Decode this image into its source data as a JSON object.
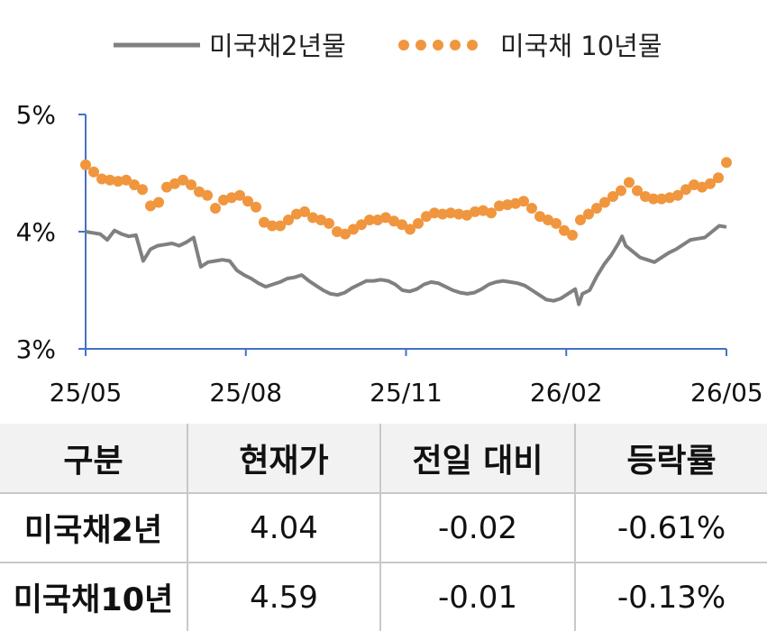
{
  "chart_data": {
    "type": "line",
    "x_ticks": [
      "25/05",
      "25/08",
      "25/11",
      "26/02",
      "26/05"
    ],
    "y_ticks": [
      "3%",
      "4%",
      "5%"
    ],
    "ylim": [
      3,
      5
    ],
    "x_range": [
      "25/05",
      "26/05"
    ],
    "grid": false,
    "legend_position": "top",
    "series": [
      {
        "name": "미국채2년물",
        "style": "line",
        "color": "#808080",
        "points": [
          [
            0.0,
            4.0
          ],
          [
            0.01,
            3.99
          ],
          [
            0.02,
            3.98
          ],
          [
            0.03,
            3.93
          ],
          [
            0.04,
            4.01
          ],
          [
            0.05,
            3.98
          ],
          [
            0.06,
            3.96
          ],
          [
            0.07,
            3.97
          ],
          [
            0.08,
            3.75
          ],
          [
            0.09,
            3.85
          ],
          [
            0.1,
            3.88
          ],
          [
            0.11,
            3.89
          ],
          [
            0.12,
            3.9
          ],
          [
            0.13,
            3.88
          ],
          [
            0.14,
            3.91
          ],
          [
            0.15,
            3.95
          ],
          [
            0.16,
            3.7
          ],
          [
            0.17,
            3.74
          ],
          [
            0.18,
            3.75
          ],
          [
            0.19,
            3.76
          ],
          [
            0.2,
            3.75
          ],
          [
            0.21,
            3.67
          ],
          [
            0.22,
            3.63
          ],
          [
            0.23,
            3.6
          ],
          [
            0.24,
            3.56
          ],
          [
            0.25,
            3.53
          ],
          [
            0.26,
            3.55
          ],
          [
            0.27,
            3.57
          ],
          [
            0.28,
            3.6
          ],
          [
            0.29,
            3.61
          ],
          [
            0.3,
            3.63
          ],
          [
            0.31,
            3.58
          ],
          [
            0.32,
            3.54
          ],
          [
            0.33,
            3.5
          ],
          [
            0.34,
            3.47
          ],
          [
            0.35,
            3.46
          ],
          [
            0.36,
            3.48
          ],
          [
            0.37,
            3.52
          ],
          [
            0.38,
            3.55
          ],
          [
            0.39,
            3.58
          ],
          [
            0.4,
            3.58
          ],
          [
            0.41,
            3.59
          ],
          [
            0.42,
            3.58
          ],
          [
            0.43,
            3.55
          ],
          [
            0.44,
            3.5
          ],
          [
            0.45,
            3.49
          ],
          [
            0.46,
            3.51
          ],
          [
            0.47,
            3.55
          ],
          [
            0.48,
            3.57
          ],
          [
            0.49,
            3.56
          ],
          [
            0.5,
            3.53
          ],
          [
            0.51,
            3.5
          ],
          [
            0.52,
            3.48
          ],
          [
            0.53,
            3.47
          ],
          [
            0.54,
            3.48
          ],
          [
            0.55,
            3.51
          ],
          [
            0.56,
            3.55
          ],
          [
            0.57,
            3.57
          ],
          [
            0.58,
            3.58
          ],
          [
            0.59,
            3.57
          ],
          [
            0.6,
            3.56
          ],
          [
            0.61,
            3.54
          ],
          [
            0.62,
            3.5
          ],
          [
            0.63,
            3.46
          ],
          [
            0.64,
            3.42
          ],
          [
            0.65,
            3.41
          ],
          [
            0.66,
            3.43
          ],
          [
            0.67,
            3.47
          ],
          [
            0.68,
            3.51
          ],
          [
            0.685,
            3.38
          ],
          [
            0.69,
            3.47
          ],
          [
            0.7,
            3.5
          ],
          [
            0.71,
            3.62
          ],
          [
            0.72,
            3.72
          ],
          [
            0.73,
            3.8
          ],
          [
            0.74,
            3.9
          ],
          [
            0.745,
            3.96
          ],
          [
            0.75,
            3.88
          ],
          [
            0.76,
            3.83
          ],
          [
            0.77,
            3.78
          ],
          [
            0.78,
            3.76
          ],
          [
            0.79,
            3.74
          ],
          [
            0.8,
            3.78
          ],
          [
            0.81,
            3.82
          ],
          [
            0.82,
            3.85
          ],
          [
            0.83,
            3.89
          ],
          [
            0.84,
            3.93
          ],
          [
            0.85,
            3.94
          ],
          [
            0.86,
            3.95
          ],
          [
            0.87,
            4.0
          ],
          [
            0.88,
            4.05
          ],
          [
            0.89,
            4.04
          ]
        ]
      },
      {
        "name": "미국채 10년물",
        "style": "dots",
        "color": "#f0963f",
        "points": [
          [
            0.0,
            4.57
          ],
          [
            0.01,
            4.51
          ],
          [
            0.02,
            4.45
          ],
          [
            0.03,
            4.44
          ],
          [
            0.04,
            4.43
          ],
          [
            0.05,
            4.44
          ],
          [
            0.06,
            4.4
          ],
          [
            0.07,
            4.36
          ],
          [
            0.08,
            4.22
          ],
          [
            0.09,
            4.25
          ],
          [
            0.1,
            4.38
          ],
          [
            0.11,
            4.41
          ],
          [
            0.12,
            4.44
          ],
          [
            0.13,
            4.4
          ],
          [
            0.14,
            4.34
          ],
          [
            0.15,
            4.31
          ],
          [
            0.16,
            4.2
          ],
          [
            0.17,
            4.27
          ],
          [
            0.18,
            4.29
          ],
          [
            0.19,
            4.31
          ],
          [
            0.2,
            4.26
          ],
          [
            0.21,
            4.21
          ],
          [
            0.22,
            4.08
          ],
          [
            0.23,
            4.05
          ],
          [
            0.24,
            4.05
          ],
          [
            0.25,
            4.1
          ],
          [
            0.26,
            4.15
          ],
          [
            0.27,
            4.17
          ],
          [
            0.28,
            4.12
          ],
          [
            0.29,
            4.1
          ],
          [
            0.3,
            4.07
          ],
          [
            0.31,
            4.0
          ],
          [
            0.32,
            3.98
          ],
          [
            0.33,
            4.02
          ],
          [
            0.34,
            4.06
          ],
          [
            0.35,
            4.1
          ],
          [
            0.36,
            4.1
          ],
          [
            0.37,
            4.12
          ],
          [
            0.38,
            4.09
          ],
          [
            0.39,
            4.06
          ],
          [
            0.4,
            4.02
          ],
          [
            0.41,
            4.07
          ],
          [
            0.42,
            4.13
          ],
          [
            0.43,
            4.16
          ],
          [
            0.44,
            4.15
          ],
          [
            0.45,
            4.16
          ],
          [
            0.46,
            4.15
          ],
          [
            0.47,
            4.14
          ],
          [
            0.48,
            4.17
          ],
          [
            0.49,
            4.18
          ],
          [
            0.5,
            4.16
          ],
          [
            0.51,
            4.22
          ],
          [
            0.52,
            4.23
          ],
          [
            0.53,
            4.24
          ],
          [
            0.54,
            4.26
          ],
          [
            0.55,
            4.2
          ],
          [
            0.56,
            4.13
          ],
          [
            0.57,
            4.1
          ],
          [
            0.58,
            4.07
          ],
          [
            0.59,
            4.01
          ],
          [
            0.6,
            3.97
          ],
          [
            0.61,
            4.1
          ],
          [
            0.62,
            4.15
          ],
          [
            0.63,
            4.2
          ],
          [
            0.64,
            4.25
          ],
          [
            0.65,
            4.3
          ],
          [
            0.66,
            4.35
          ],
          [
            0.67,
            4.42
          ],
          [
            0.68,
            4.35
          ],
          [
            0.69,
            4.3
          ],
          [
            0.7,
            4.28
          ],
          [
            0.71,
            4.28
          ],
          [
            0.72,
            4.29
          ],
          [
            0.73,
            4.31
          ],
          [
            0.74,
            4.36
          ],
          [
            0.75,
            4.4
          ],
          [
            0.76,
            4.38
          ],
          [
            0.77,
            4.41
          ],
          [
            0.78,
            4.46
          ],
          [
            0.79,
            4.59
          ]
        ]
      }
    ]
  },
  "table": {
    "headers": [
      "구분",
      "현재가",
      "전일 대비",
      "등락률"
    ],
    "rows": [
      [
        "미국채2년",
        "4.04",
        "-0.02",
        "-0.61%"
      ],
      [
        "미국채10년",
        "4.59",
        "-0.01",
        "-0.13%"
      ]
    ]
  }
}
